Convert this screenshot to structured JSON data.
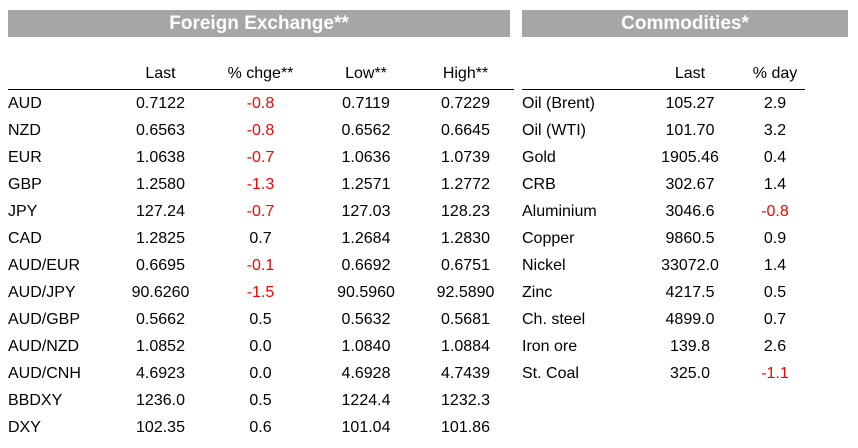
{
  "fx": {
    "title": "Foreign Exchange**",
    "headers": [
      "",
      "Last",
      "% chge**",
      "Low**",
      "High**"
    ],
    "rows": [
      [
        "AUD",
        "0.7122",
        "-0.8",
        "0.7119",
        "0.7229"
      ],
      [
        "NZD",
        "0.6563",
        "-0.8",
        "0.6562",
        "0.6645"
      ],
      [
        "EUR",
        "1.0638",
        "-0.7",
        "1.0636",
        "1.0739"
      ],
      [
        "GBP",
        "1.2580",
        "-1.3",
        "1.2571",
        "1.2772"
      ],
      [
        "JPY",
        "127.24",
        "-0.7",
        "127.03",
        "128.23"
      ],
      [
        "CAD",
        "1.2825",
        "0.7",
        "1.2684",
        "1.2830"
      ],
      [
        "AUD/EUR",
        "0.6695",
        "-0.1",
        "0.6692",
        "0.6751"
      ],
      [
        "AUD/JPY",
        "90.6260",
        "-1.5",
        "90.5960",
        "92.5890"
      ],
      [
        "AUD/GBP",
        "0.5662",
        "0.5",
        "0.5632",
        "0.5681"
      ],
      [
        "AUD/NZD",
        "1.0852",
        "0.0",
        "1.0840",
        "1.0884"
      ],
      [
        "AUD/CNH",
        "4.6923",
        "0.0",
        "4.6928",
        "4.7439"
      ],
      [
        "BBDXY",
        "1236.0",
        "0.5",
        "1224.4",
        "1232.3"
      ],
      [
        "DXY",
        "102.35",
        "0.6",
        "101.04",
        "101.86"
      ]
    ]
  },
  "commodities": {
    "title": "Commodities*",
    "headers": [
      "",
      "Last",
      "% day"
    ],
    "rows": [
      [
        "Oil (Brent)",
        "105.27",
        "2.9"
      ],
      [
        "Oil (WTI)",
        "101.70",
        "3.2"
      ],
      [
        "Gold",
        "1905.46",
        "0.4"
      ],
      [
        "CRB",
        "302.67",
        "1.4"
      ],
      [
        "Aluminium",
        "3046.6",
        "-0.8"
      ],
      [
        "Copper",
        "9860.5",
        "0.9"
      ],
      [
        "Nickel",
        "33072.0",
        "1.4"
      ],
      [
        "Zinc",
        "4217.5",
        "0.5"
      ],
      [
        "Ch. steel",
        "4899.0",
        "0.7"
      ],
      [
        "Iron ore",
        "139.8",
        "2.6"
      ],
      [
        "St. Coal",
        "325.0",
        "-1.1"
      ]
    ]
  },
  "colors": {
    "header_bg": "#a6a6a6",
    "header_text": "#ffffff",
    "negative": "#ff0000"
  }
}
